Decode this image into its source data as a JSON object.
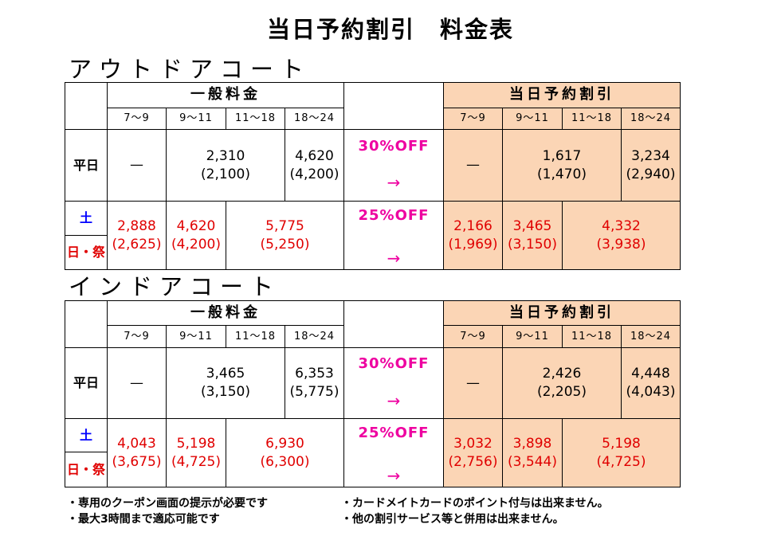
{
  "title": "当日予約割引　料金表",
  "outdoor": {
    "name": "アウトドアコート",
    "regular_header": "一般料金",
    "discount_header": "当日予約割引",
    "times": [
      "7～9",
      "9～11",
      "11～18",
      "18～24"
    ],
    "weekday_label": "平日",
    "saturday_label": "土",
    "holiday_label": "日・祭",
    "weekday_off": "30%OFF",
    "weekend_off": "25%OFF",
    "arrow": "→",
    "weekday_regular": {
      "t7_9": "—",
      "t9_18_price": "2,310",
      "t9_18_tax": "(2,100)",
      "t18_24_price": "4,620",
      "t18_24_tax": "(4,200)"
    },
    "weekday_discount": {
      "t7_9": "—",
      "t9_18_price": "1,617",
      "t9_18_tax": "(1,470)",
      "t18_24_price": "3,234",
      "t18_24_tax": "(2,940)"
    },
    "weekend_regular": {
      "t7_9_price": "2,888",
      "t7_9_tax": "(2,625)",
      "t9_11_price": "4,620",
      "t9_11_tax": "(4,200)",
      "t11_24_price": "5,775",
      "t11_24_tax": "(5,250)"
    },
    "weekend_discount": {
      "t7_9_price": "2,166",
      "t7_9_tax": "(1,969)",
      "t9_11_price": "3,465",
      "t9_11_tax": "(3,150)",
      "t11_24_price": "4,332",
      "t11_24_tax": "(3,938)"
    }
  },
  "indoor": {
    "name": "インドアコート",
    "regular_header": "一般料金",
    "discount_header": "当日予約割引",
    "times": [
      "7～9",
      "9～11",
      "11～18",
      "18～24"
    ],
    "weekday_label": "平日",
    "saturday_label": "土",
    "holiday_label": "日・祭",
    "weekday_off": "30%OFF",
    "weekend_off": "25%OFF",
    "arrow": "→",
    "weekday_regular": {
      "t7_9": "—",
      "t9_18_price": "3,465",
      "t9_18_tax": "(3,150)",
      "t18_24_price": "6,353",
      "t18_24_tax": "(5,775)"
    },
    "weekday_discount": {
      "t7_9": "—",
      "t9_18_price": "2,426",
      "t9_18_tax": "(2,205)",
      "t18_24_price": "4,448",
      "t18_24_tax": "(4,043)"
    },
    "weekend_regular": {
      "t7_9_price": "4,043",
      "t7_9_tax": "(3,675)",
      "t9_11_price": "5,198",
      "t9_11_tax": "(4,725)",
      "t11_24_price": "6,930",
      "t11_24_tax": "(6,300)"
    },
    "weekend_discount": {
      "t7_9_price": "3,032",
      "t7_9_tax": "(2,756)",
      "t9_11_price": "3,898",
      "t9_11_tax": "(3,544)",
      "t11_24_price": "5,198",
      "t11_24_tax": "(4,725)"
    }
  },
  "notes": {
    "left": [
      "・専用のクーポン画面の提示が必要です",
      "・最大3時間まで適応可能です"
    ],
    "right": [
      "・カードメイトカードのポイント付与は出来ません。",
      "・他の割引サービス等と併用は出来ません。"
    ]
  },
  "colors": {
    "discount_bg": "#fbd5b5",
    "saturday": "#0000ff",
    "weekend_price": "#e00000",
    "off_label": "#ee00a0"
  }
}
